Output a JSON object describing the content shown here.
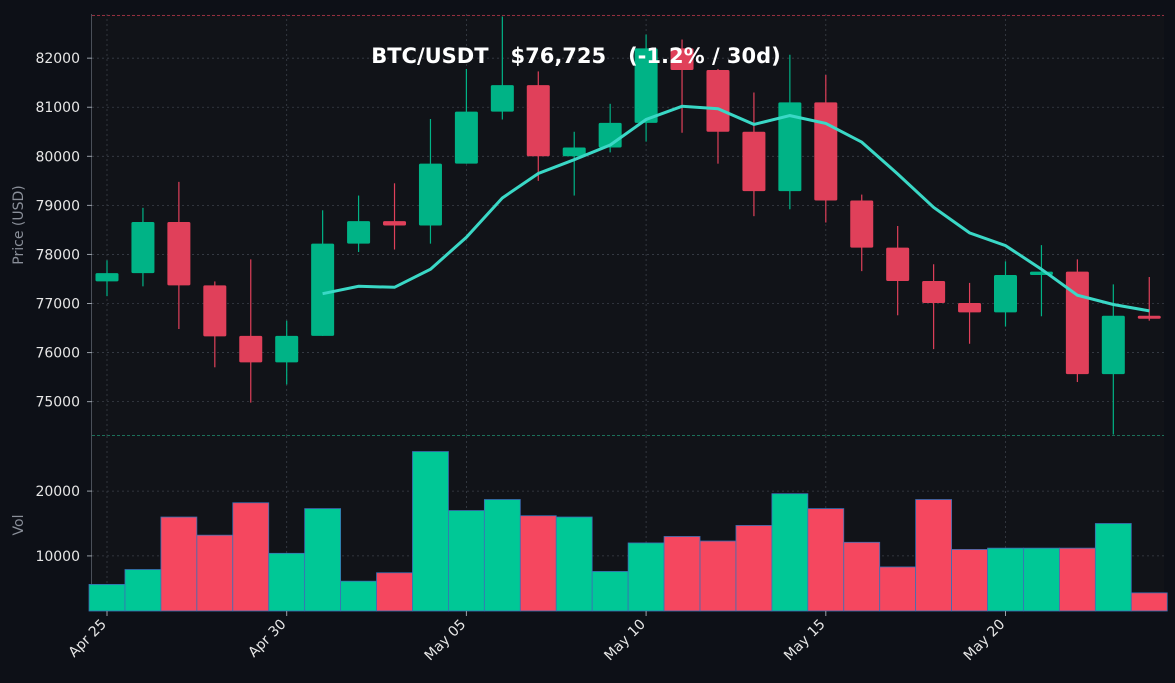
{
  "chart_data": [
    {
      "type": "candlestick",
      "title": "BTC/USDT   $76,725   (-1.2% / 30d)",
      "ylabel": "Price (USD)",
      "ylim": [
        74300,
        82900
      ],
      "yticks": [
        75000,
        76000,
        77000,
        78000,
        79000,
        80000,
        81000,
        82000
      ],
      "x_start": "2025-04-25",
      "x_ticks": [
        "Apr 25",
        "Apr 30",
        "May 05",
        "May 10",
        "May 15",
        "May 20"
      ],
      "candles": [
        {
          "date": "2025-04-25",
          "open": 77450,
          "high": 77880,
          "low": 77150,
          "close": 77620
        },
        {
          "date": "2025-04-26",
          "open": 77620,
          "high": 78950,
          "low": 77350,
          "close": 78660
        },
        {
          "date": "2025-04-27",
          "open": 78660,
          "high": 79480,
          "low": 76480,
          "close": 77370
        },
        {
          "date": "2025-04-28",
          "open": 77370,
          "high": 77450,
          "low": 75700,
          "close": 76330
        },
        {
          "date": "2025-04-29",
          "open": 76340,
          "high": 77900,
          "low": 74980,
          "close": 75800
        },
        {
          "date": "2025-04-30",
          "open": 75800,
          "high": 76650,
          "low": 75350,
          "close": 76340
        },
        {
          "date": "2025-05-01",
          "open": 76340,
          "high": 78900,
          "low": 76340,
          "close": 78220
        },
        {
          "date": "2025-05-02",
          "open": 78220,
          "high": 79200,
          "low": 78050,
          "close": 78680
        },
        {
          "date": "2025-05-03",
          "open": 78680,
          "high": 79450,
          "low": 78100,
          "close": 78590
        },
        {
          "date": "2025-05-04",
          "open": 78590,
          "high": 80760,
          "low": 78220,
          "close": 79850
        },
        {
          "date": "2025-05-05",
          "open": 79850,
          "high": 81780,
          "low": 79850,
          "close": 80910
        },
        {
          "date": "2025-05-06",
          "open": 80910,
          "high": 82850,
          "low": 80750,
          "close": 81450
        },
        {
          "date": "2025-05-07",
          "open": 81450,
          "high": 81730,
          "low": 79500,
          "close": 80000
        },
        {
          "date": "2025-05-08",
          "open": 80000,
          "high": 80500,
          "low": 79200,
          "close": 80180
        },
        {
          "date": "2025-05-09",
          "open": 80180,
          "high": 81070,
          "low": 80080,
          "close": 80680
        },
        {
          "date": "2025-05-10",
          "open": 80680,
          "high": 82480,
          "low": 80300,
          "close": 82200
        },
        {
          "date": "2025-05-11",
          "open": 82200,
          "high": 82380,
          "low": 80480,
          "close": 81760
        },
        {
          "date": "2025-05-12",
          "open": 81760,
          "high": 81780,
          "low": 79850,
          "close": 80500
        },
        {
          "date": "2025-05-13",
          "open": 80500,
          "high": 81300,
          "low": 78780,
          "close": 79290
        },
        {
          "date": "2025-05-14",
          "open": 79290,
          "high": 82070,
          "low": 78920,
          "close": 81100
        },
        {
          "date": "2025-05-15",
          "open": 81100,
          "high": 81660,
          "low": 78650,
          "close": 79100
        },
        {
          "date": "2025-05-16",
          "open": 79100,
          "high": 79220,
          "low": 77660,
          "close": 78140
        },
        {
          "date": "2025-05-17",
          "open": 78140,
          "high": 78580,
          "low": 76760,
          "close": 77460
        },
        {
          "date": "2025-05-18",
          "open": 77460,
          "high": 77800,
          "low": 76070,
          "close": 77010
        },
        {
          "date": "2025-05-19",
          "open": 77010,
          "high": 77420,
          "low": 76180,
          "close": 76820
        },
        {
          "date": "2025-05-20",
          "open": 76820,
          "high": 77860,
          "low": 76530,
          "close": 77580
        },
        {
          "date": "2025-05-21",
          "open": 77580,
          "high": 78190,
          "low": 76740,
          "close": 77650
        },
        {
          "date": "2025-05-22",
          "open": 77650,
          "high": 77900,
          "low": 75400,
          "close": 75560
        },
        {
          "date": "2025-05-23",
          "open": 75560,
          "high": 77390,
          "low": 74330,
          "close": 76750
        },
        {
          "date": "2025-05-24",
          "open": 76750,
          "high": 77540,
          "low": 76650,
          "close": 76725
        }
      ],
      "ma_series": {
        "start_date": "2025-05-01",
        "values": [
          77200,
          77350,
          77330,
          77700,
          78350,
          79150,
          79650,
          79930,
          80230,
          80750,
          81020,
          80970,
          80650,
          80830,
          80670,
          80290,
          79640,
          78960,
          78440,
          78180,
          77700,
          77170,
          76980,
          76850
        ]
      },
      "colors": {
        "up": "#00b386",
        "down": "#e0405a",
        "ma": "#3ad8c6",
        "background": "#111318",
        "page": "#0d1017"
      }
    },
    {
      "type": "bar",
      "ylabel": "Vol",
      "ylim": [
        1500,
        28500
      ],
      "yticks": [
        10000,
        20000
      ],
      "values": [
        5600,
        7900,
        16000,
        13200,
        18200,
        10400,
        17300,
        6100,
        7400,
        26100,
        17000,
        18700,
        16200,
        16000,
        7600,
        12000,
        13000,
        12300,
        14700,
        19600,
        17300,
        12100,
        8300,
        18700,
        11000,
        11200,
        11200,
        11200,
        15000,
        4300
      ],
      "directions": [
        "up",
        "up",
        "down",
        "down",
        "down",
        "up",
        "up",
        "up",
        "down",
        "up",
        "up",
        "up",
        "down",
        "up",
        "up",
        "up",
        "down",
        "down",
        "down",
        "up",
        "down",
        "down",
        "down",
        "down",
        "down",
        "up",
        "up",
        "down",
        "up",
        "down"
      ],
      "colors": {
        "up": "#00c896",
        "down": "#f5475f",
        "edge": "#3b6fb5"
      }
    }
  ]
}
